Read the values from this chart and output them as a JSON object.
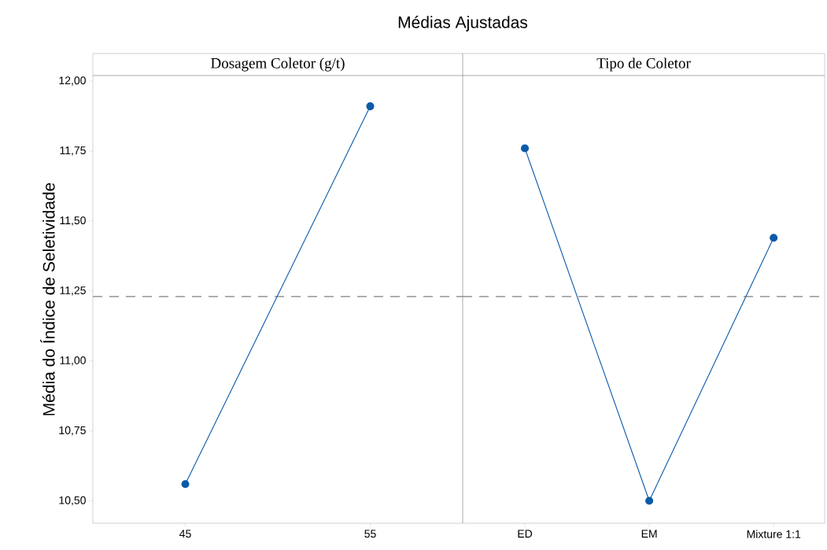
{
  "chart_data": [
    {
      "type": "line",
      "title": "Médias Ajustadas",
      "subtitle": "Dosagem Coletor (g/t)",
      "ylabel": "Média do Índice de Seletividade",
      "categories": [
        "45",
        "55"
      ],
      "values": [
        10.56,
        11.91
      ],
      "color": "#0b5aa8",
      "marker": "circle",
      "line_style": "solid",
      "ylim": [
        10.42,
        12.02
      ],
      "yticks": [
        {
          "value": 10.5,
          "label": "10,50"
        },
        {
          "value": 10.75,
          "label": "10,75"
        },
        {
          "value": 11,
          "label": "11,00"
        },
        {
          "value": 11.25,
          "label": "11,25"
        },
        {
          "value": 11.5,
          "label": "11,50"
        },
        {
          "value": 11.75,
          "label": "11,75"
        },
        {
          "value": 12,
          "label": "12,00"
        }
      ],
      "ref_lines": [
        {
          "axis": "y",
          "value": 11.23,
          "color": "#808080",
          "line_style": "dashed"
        }
      ]
    },
    {
      "type": "line",
      "subtitle": "Tipo de Coletor",
      "categories": [
        "ED",
        "EM",
        "Mixture 1:1"
      ],
      "values": [
        11.76,
        10.5,
        11.44
      ],
      "color": "#0b5aa8",
      "marker": "circle",
      "line_style": "solid",
      "ylim": [
        10.42,
        12.02
      ],
      "tick_labels": "x",
      "ref_lines": [
        {
          "axis": "y",
          "value": 11.23,
          "color": "#808080",
          "line_style": "dashed"
        }
      ]
    }
  ]
}
